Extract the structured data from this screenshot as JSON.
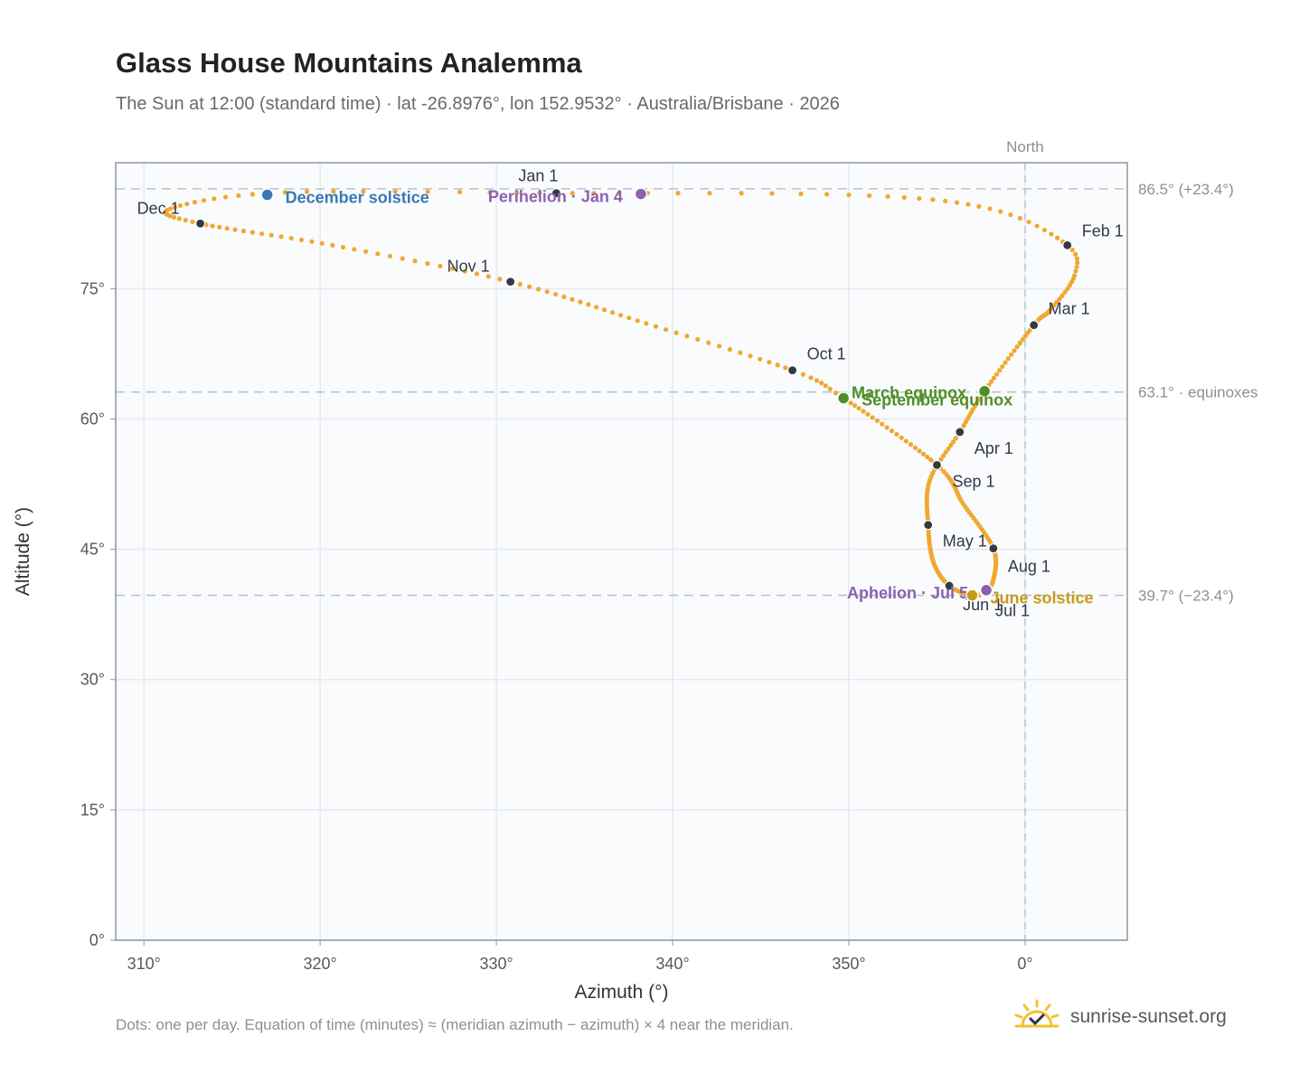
{
  "chart_data": {
    "type": "scatter",
    "title": "Glass House Mountains Analemma",
    "subtitle": "The Sun at 12:00 (standard time) · lat -26.8976°, lon 152.9532° · Australia/Brisbane · 2026",
    "xlabel": "Azimuth (°)",
    "ylabel": "Altitude (°)",
    "xlim": [
      -51.6,
      5.8
    ],
    "ylim": [
      0,
      89.5
    ],
    "x_ticks": [
      {
        "value": -50,
        "label": "310°"
      },
      {
        "value": -40,
        "label": "320°"
      },
      {
        "value": -30,
        "label": "330°"
      },
      {
        "value": -20,
        "label": "340°"
      },
      {
        "value": -10,
        "label": "350°"
      },
      {
        "value": 0,
        "label": "0°"
      }
    ],
    "y_ticks": [
      {
        "value": 0,
        "label": "0°"
      },
      {
        "value": 15,
        "label": "15°"
      },
      {
        "value": 30,
        "label": "30°"
      },
      {
        "value": 45,
        "label": "45°"
      },
      {
        "value": 60,
        "label": "60°"
      },
      {
        "value": 75,
        "label": "75°"
      }
    ],
    "north_label": "North",
    "reference_lines": [
      {
        "value": 86.5,
        "label": "86.5° (+23.4°)"
      },
      {
        "value": 63.1,
        "label": "63.1° · equinoxes"
      },
      {
        "value": 39.7,
        "label": "39.7° (−23.4°)"
      }
    ],
    "curve_anchors": [
      {
        "day": 1,
        "az": -26.6,
        "alt": 86.0
      },
      {
        "day": 12,
        "az": -10.0,
        "alt": 85.8
      },
      {
        "day": 22,
        "az": -2.0,
        "alt": 84.2
      },
      {
        "day": 32,
        "az": 2.4,
        "alt": 80.0
      },
      {
        "day": 39,
        "az": 2.8,
        "alt": 76.5
      },
      {
        "day": 50,
        "az": 1.4,
        "alt": 72.5
      },
      {
        "day": 60,
        "az": 0.5,
        "alt": 70.8
      },
      {
        "day": 79,
        "az": -2.3,
        "alt": 63.2
      },
      {
        "day": 91,
        "az": -3.7,
        "alt": 58.5
      },
      {
        "day": 105,
        "az": -5.4,
        "alt": 53.0
      },
      {
        "day": 121,
        "az": -5.5,
        "alt": 47.8
      },
      {
        "day": 137,
        "az": -5.2,
        "alt": 43.5
      },
      {
        "day": 152,
        "az": -4.3,
        "alt": 40.8
      },
      {
        "day": 172,
        "az": -3.0,
        "alt": 39.7
      },
      {
        "day": 182,
        "az": -2.3,
        "alt": 40.1
      },
      {
        "day": 196,
        "az": -1.8,
        "alt": 41.5
      },
      {
        "day": 213,
        "az": -1.8,
        "alt": 45.1
      },
      {
        "day": 229,
        "az": -3.5,
        "alt": 50.2
      },
      {
        "day": 244,
        "az": -5.0,
        "alt": 54.7
      },
      {
        "day": 266,
        "az": -10.3,
        "alt": 62.4
      },
      {
        "day": 274,
        "az": -13.2,
        "alt": 65.6
      },
      {
        "day": 289,
        "az": -21.5,
        "alt": 71.0
      },
      {
        "day": 305,
        "az": -29.2,
        "alt": 75.8
      },
      {
        "day": 320,
        "az": -39.3,
        "alt": 80.0
      },
      {
        "day": 335,
        "az": -46.8,
        "alt": 82.5
      },
      {
        "day": 345,
        "az": -48.5,
        "alt": 84.2
      },
      {
        "day": 356,
        "az": -42.0,
        "alt": 86.1
      },
      {
        "day": 366,
        "az": -26.6,
        "alt": 86.0
      }
    ],
    "month_markers": [
      {
        "label": "Jan 1",
        "az": -26.6,
        "alt": 86.0
      },
      {
        "label": "Feb 1",
        "az": 2.4,
        "alt": 80.0
      },
      {
        "label": "Mar 1",
        "az": 0.5,
        "alt": 70.8
      },
      {
        "label": "Apr 1",
        "az": -3.7,
        "alt": 58.5
      },
      {
        "label": "May 1",
        "az": -5.5,
        "alt": 47.8
      },
      {
        "label": "Jun 1",
        "az": -4.3,
        "alt": 40.8
      },
      {
        "label": "Jul 1",
        "az": -2.3,
        "alt": 40.1
      },
      {
        "label": "Aug 1",
        "az": -1.8,
        "alt": 45.1
      },
      {
        "label": "Sep 1",
        "az": -5.0,
        "alt": 54.7
      },
      {
        "label": "Oct 1",
        "az": -13.2,
        "alt": 65.6
      },
      {
        "label": "Nov 1",
        "az": -29.2,
        "alt": 75.8
      },
      {
        "label": "Dec 1",
        "az": -46.8,
        "alt": 82.5
      }
    ],
    "events": [
      {
        "label": "December solstice",
        "az": -43.0,
        "alt": 85.8,
        "color": "#3a78b5"
      },
      {
        "label": "Perihelion · Jan 4",
        "az": -21.8,
        "alt": 85.9,
        "color": "#8b62b0"
      },
      {
        "label": "March equinox",
        "az": -2.3,
        "alt": 63.2,
        "color": "#4f8f2a"
      },
      {
        "label": "September equinox",
        "az": -10.3,
        "alt": 62.4,
        "color": "#4f8f2a"
      },
      {
        "label": "Aphelion · Jul 5",
        "az": -2.2,
        "alt": 40.3,
        "color": "#8b62b0"
      },
      {
        "label": "June solstice",
        "az": -3.0,
        "alt": 39.7,
        "color": "#c99a1a"
      }
    ],
    "colors": {
      "curve": "#f0a830",
      "month_marker": "#333a44",
      "reference_line": "#b8c2cc",
      "plot_background": "#f9fbfd"
    }
  },
  "footnote": "Dots: one per day. Equation of time (minutes) ≈ (meridian azimuth − azimuth) × 4 near the meridian.",
  "brand": {
    "text": "sunrise-sunset.org",
    "icon": "sun-check-icon"
  }
}
